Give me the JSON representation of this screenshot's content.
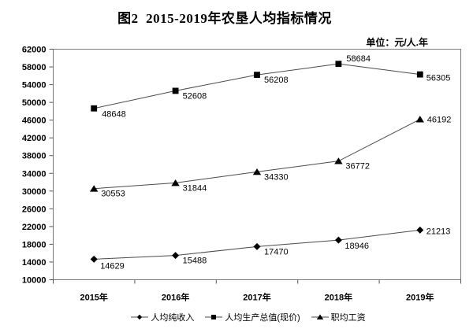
{
  "title": "图2  2015-2019年农垦人均指标情况",
  "unit_label": "单位：元/人.年",
  "chart_data": {
    "type": "line",
    "title": "图2  2015-2019年农垦人均指标情况",
    "unit": "元/人.年",
    "categories": [
      "2015年",
      "2016年",
      "2017年",
      "2018年",
      "2019年"
    ],
    "series": [
      {
        "id": "per-capita-net-income",
        "name": "人均纯收入",
        "marker": "diamond",
        "values": [
          14629,
          15488,
          17470,
          18946,
          21213
        ]
      },
      {
        "id": "per-capita-gdp-current-price",
        "name": "人均生产总值(现价)",
        "marker": "square",
        "values": [
          48648,
          52608,
          56208,
          58684,
          56305
        ]
      },
      {
        "id": "average-worker-wage",
        "name": "职均工资",
        "marker": "triangle",
        "values": [
          30553,
          31844,
          34330,
          36772,
          46192
        ]
      }
    ],
    "ylim": [
      10000,
      62000
    ],
    "ystep": 4000,
    "grid": false,
    "legend_position": "bottom",
    "data_labels": true,
    "colors": {
      "line": "#4a4a4a",
      "marker": "#000000",
      "axis": "#7a7a7a",
      "tick": "#555555",
      "text": "#000000"
    }
  }
}
